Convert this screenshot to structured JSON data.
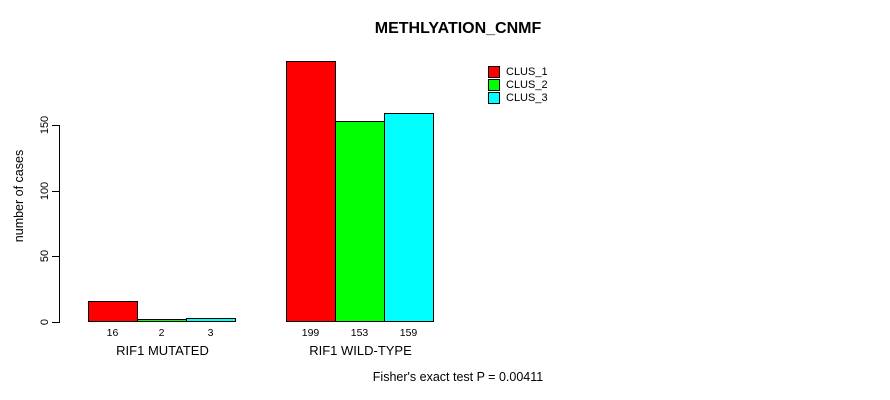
{
  "title": "METHLYATION_CNMF",
  "footer": "Fisher's exact test P = 0.00411",
  "y_axis": {
    "label": "number of cases",
    "ticks": [
      0,
      50,
      100,
      150
    ]
  },
  "legend": {
    "entries": [
      {
        "label": "CLUS_1",
        "color": "#ff0000"
      },
      {
        "label": "CLUS_2",
        "color": "#00ff00"
      },
      {
        "label": "CLUS_3",
        "color": "#00ffff"
      }
    ]
  },
  "chart_data": {
    "type": "bar",
    "title": "METHLYATION_CNMF",
    "xlabel": "",
    "ylabel": "number of cases",
    "ylim": [
      0,
      199
    ],
    "yticks": [
      0,
      50,
      100,
      150
    ],
    "grid": false,
    "legend_position": "top-right",
    "categories": [
      "RIF1 MUTATED",
      "RIF1 WILD-TYPE"
    ],
    "series": [
      {
        "name": "CLUS_1",
        "color": "#ff0000",
        "values": [
          16,
          199
        ]
      },
      {
        "name": "CLUS_2",
        "color": "#00ff00",
        "values": [
          2,
          153
        ]
      },
      {
        "name": "CLUS_3",
        "color": "#00ffff",
        "values": [
          3,
          159
        ]
      }
    ],
    "bar_value_labels": [
      [
        16,
        2,
        3
      ],
      [
        199,
        153,
        159
      ]
    ],
    "annotation": "Fisher's exact test P = 0.00411"
  }
}
